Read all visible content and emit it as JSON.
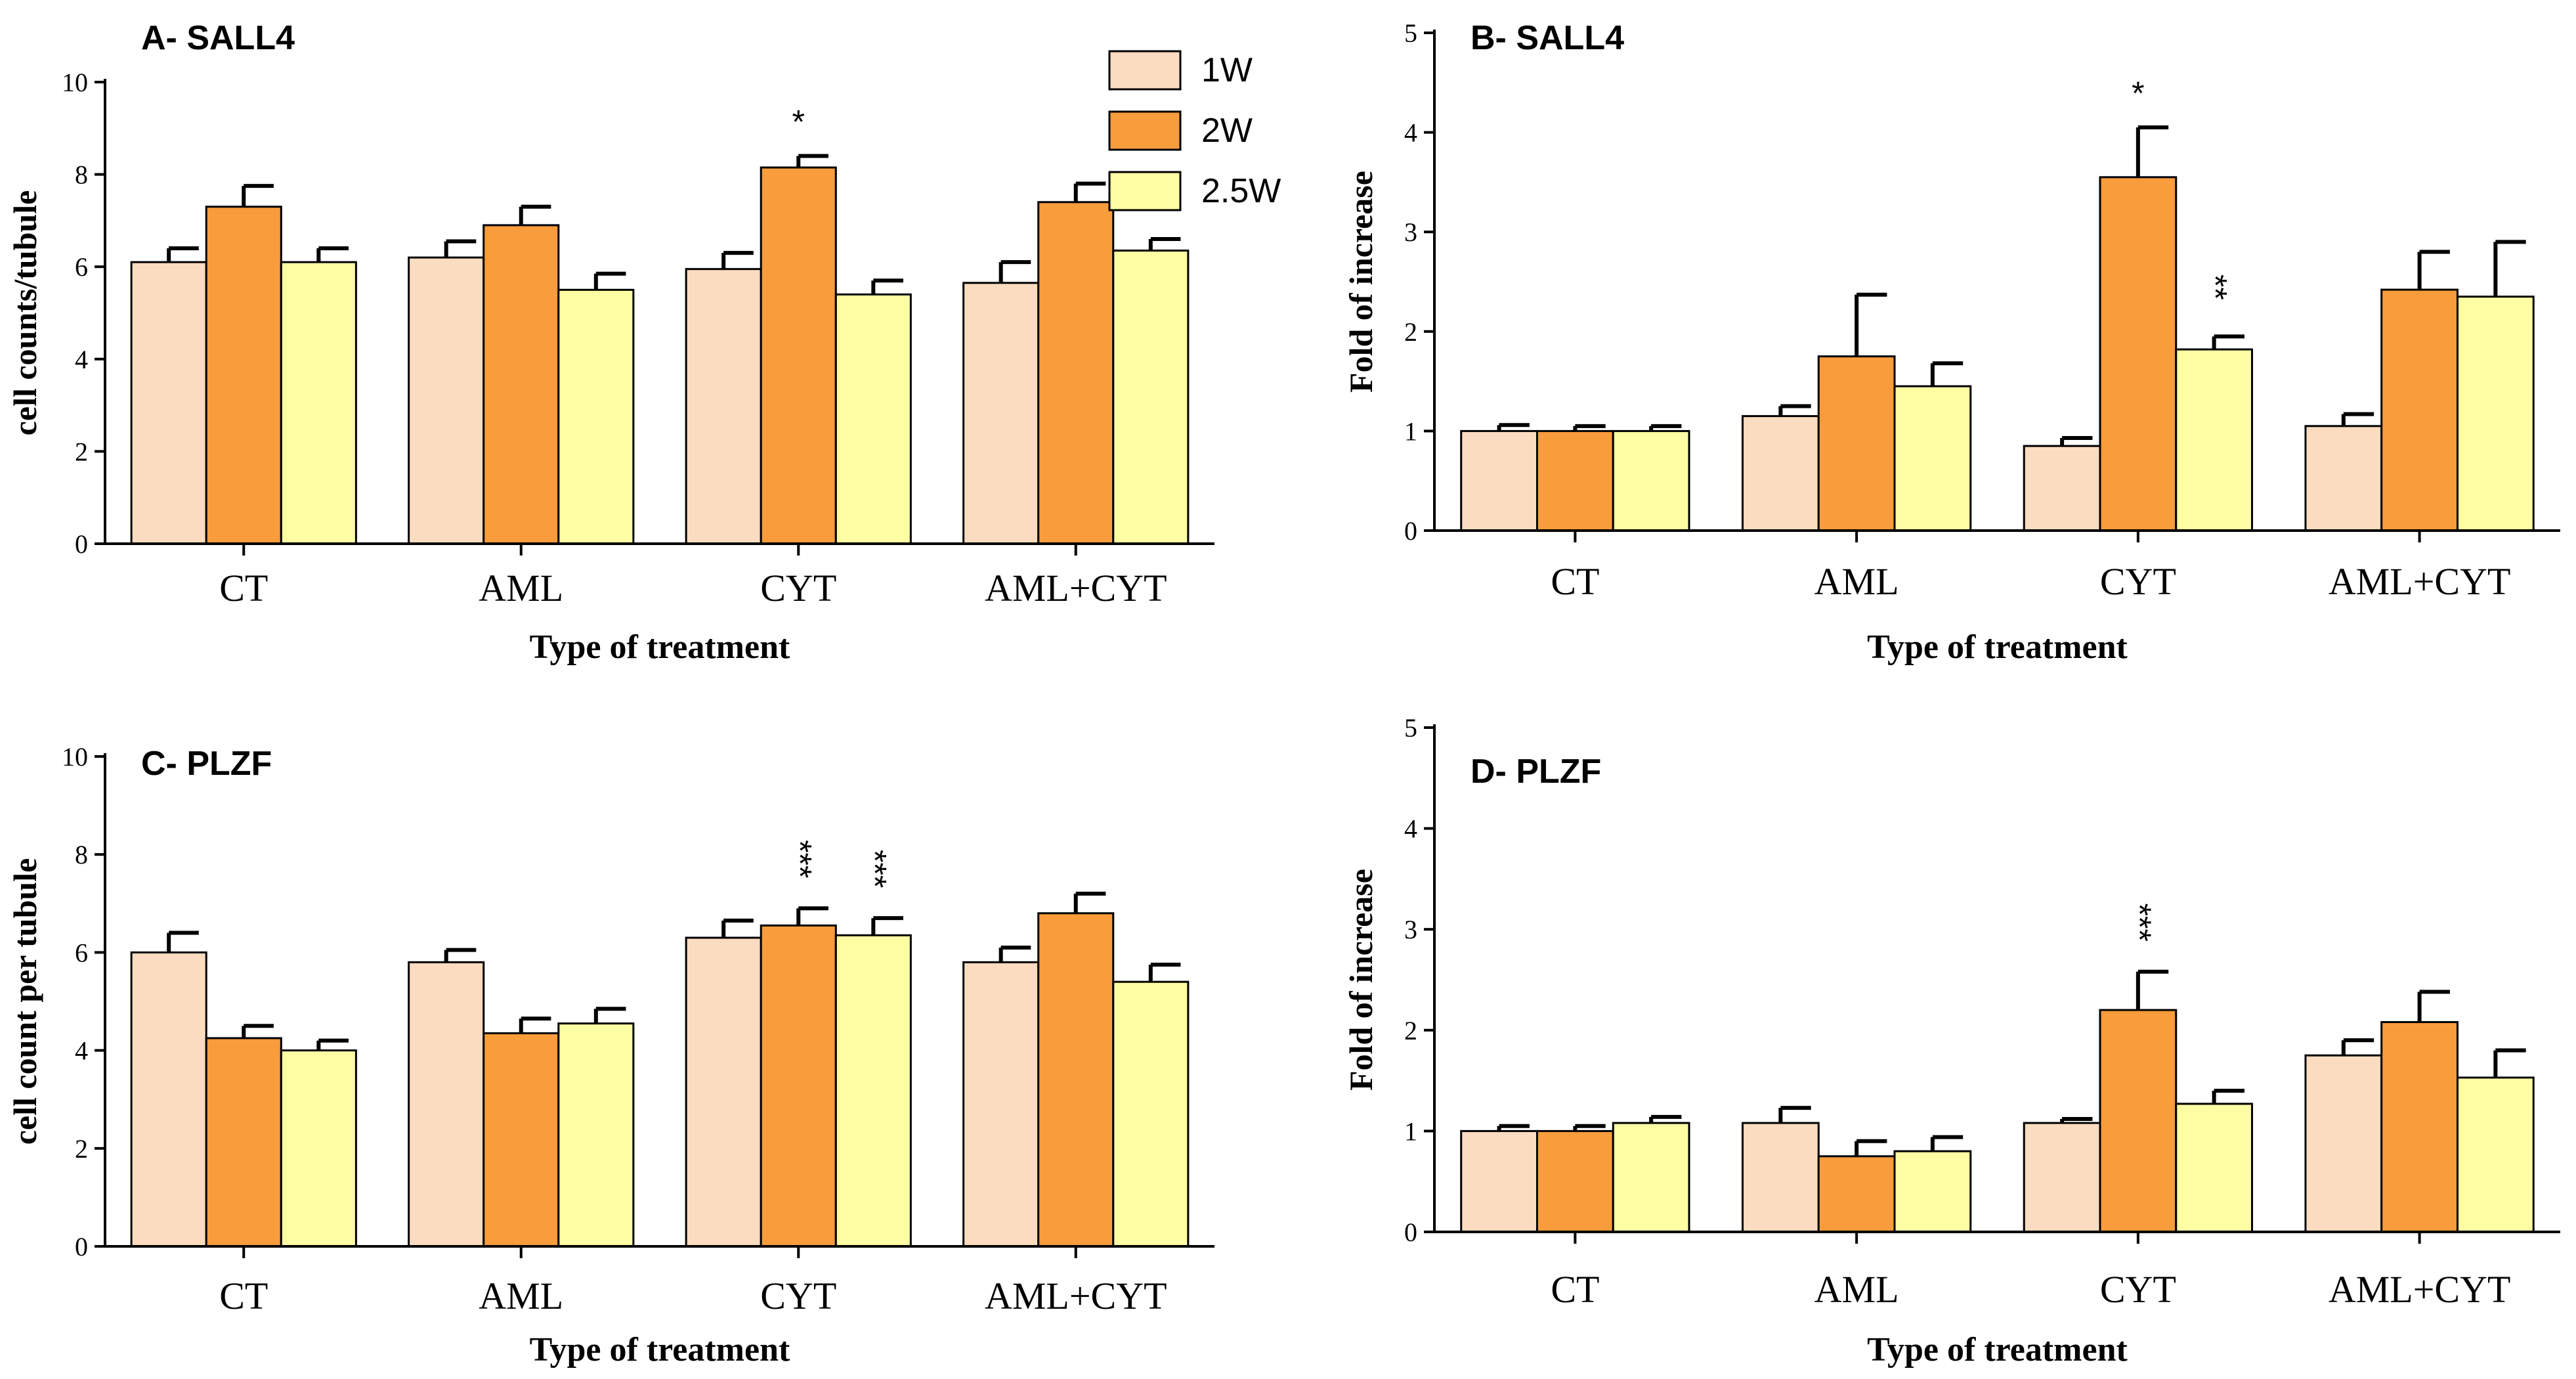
{
  "legend": {
    "entries": [
      {
        "label": "1W",
        "color": "#FCDCC0"
      },
      {
        "label": "2W",
        "color": "#F99C3C"
      },
      {
        "label": "2.5W",
        "color": "#FDFDA4"
      }
    ]
  },
  "chart_data": [
    {
      "type": "bar",
      "title": "A- SALL4",
      "xlabel": "Type of treatment",
      "ylabel": "cell counts/tubule",
      "ylim": [
        0,
        10
      ],
      "yticks": [
        "0",
        "2",
        "4",
        "6",
        "8",
        "10"
      ],
      "categories": [
        "CT",
        "AML",
        "CYT",
        "AML+CYT"
      ],
      "series": [
        {
          "name": "1W",
          "values": [
            6.1,
            6.2,
            5.95,
            5.65
          ],
          "errors": [
            0.3,
            0.35,
            0.35,
            0.45
          ]
        },
        {
          "name": "2W",
          "values": [
            7.3,
            6.9,
            8.15,
            7.4
          ],
          "errors": [
            0.45,
            0.4,
            0.25,
            0.4
          ]
        },
        {
          "name": "2.5W",
          "values": [
            6.1,
            5.5,
            5.4,
            6.35
          ],
          "errors": [
            0.3,
            0.35,
            0.3,
            0.25
          ]
        }
      ],
      "annotations": [
        {
          "category": 2,
          "series": 1,
          "text": "*",
          "rotate": false
        }
      ]
    },
    {
      "type": "bar",
      "title": "B- SALL4",
      "xlabel": "Type of treatment",
      "ylabel": "Fold of increase",
      "ylim": [
        0,
        5
      ],
      "yticks": [
        "0",
        "1",
        "2",
        "3",
        "4",
        "5"
      ],
      "categories": [
        "CT",
        "AML",
        "CYT",
        "AML+CYT"
      ],
      "series": [
        {
          "name": "1W",
          "values": [
            1.0,
            1.15,
            0.85,
            1.05
          ],
          "errors": [
            0.06,
            0.1,
            0.08,
            0.12
          ]
        },
        {
          "name": "2W",
          "values": [
            1.0,
            1.75,
            3.55,
            2.42
          ],
          "errors": [
            0.05,
            0.62,
            0.5,
            0.38
          ]
        },
        {
          "name": "2.5W",
          "values": [
            1.0,
            1.45,
            1.82,
            2.35
          ],
          "errors": [
            0.05,
            0.23,
            0.13,
            0.55
          ]
        }
      ],
      "annotations": [
        {
          "category": 2,
          "series": 1,
          "text": "*",
          "rotate": false
        },
        {
          "category": 2,
          "series": 2,
          "text": "**",
          "rotate": true
        }
      ]
    },
    {
      "type": "bar",
      "title": "C- PLZF",
      "xlabel": "Type of treatment",
      "ylabel": "cell count per tubule",
      "ylim": [
        0,
        10
      ],
      "yticks": [
        "0",
        "2",
        "4",
        "6",
        "8",
        "10"
      ],
      "categories": [
        "CT",
        "AML",
        "CYT",
        "AML+CYT"
      ],
      "series": [
        {
          "name": "1W",
          "values": [
            6.0,
            5.8,
            6.3,
            5.8
          ],
          "errors": [
            0.4,
            0.25,
            0.35,
            0.3
          ]
        },
        {
          "name": "2W",
          "values": [
            4.25,
            4.35,
            6.55,
            6.8
          ],
          "errors": [
            0.25,
            0.3,
            0.35,
            0.4
          ]
        },
        {
          "name": "2.5W",
          "values": [
            4.0,
            4.55,
            6.35,
            5.4
          ],
          "errors": [
            0.2,
            0.3,
            0.35,
            0.35
          ]
        }
      ],
      "annotations": [
        {
          "category": 2,
          "series": 1,
          "text": "***",
          "rotate": true
        },
        {
          "category": 2,
          "series": 2,
          "text": "***",
          "rotate": true
        }
      ]
    },
    {
      "type": "bar",
      "title": "D- PLZF",
      "xlabel": "Type of treatment",
      "ylabel": "Fold of increase",
      "ylim": [
        0,
        5
      ],
      "yticks": [
        "0",
        "1",
        "2",
        "3",
        "4",
        "5"
      ],
      "categories": [
        "CT",
        "AML",
        "CYT",
        "AML+CYT"
      ],
      "series": [
        {
          "name": "1W",
          "values": [
            1.0,
            1.08,
            1.08,
            1.75
          ],
          "errors": [
            0.05,
            0.15,
            0.04,
            0.15
          ]
        },
        {
          "name": "2W",
          "values": [
            1.0,
            0.75,
            2.2,
            2.08
          ],
          "errors": [
            0.05,
            0.15,
            0.38,
            0.3
          ]
        },
        {
          "name": "2.5W",
          "values": [
            1.08,
            0.8,
            1.27,
            1.53
          ],
          "errors": [
            0.06,
            0.14,
            0.13,
            0.27
          ]
        }
      ],
      "annotations": [
        {
          "category": 2,
          "series": 1,
          "text": "***",
          "rotate": true
        }
      ]
    }
  ]
}
